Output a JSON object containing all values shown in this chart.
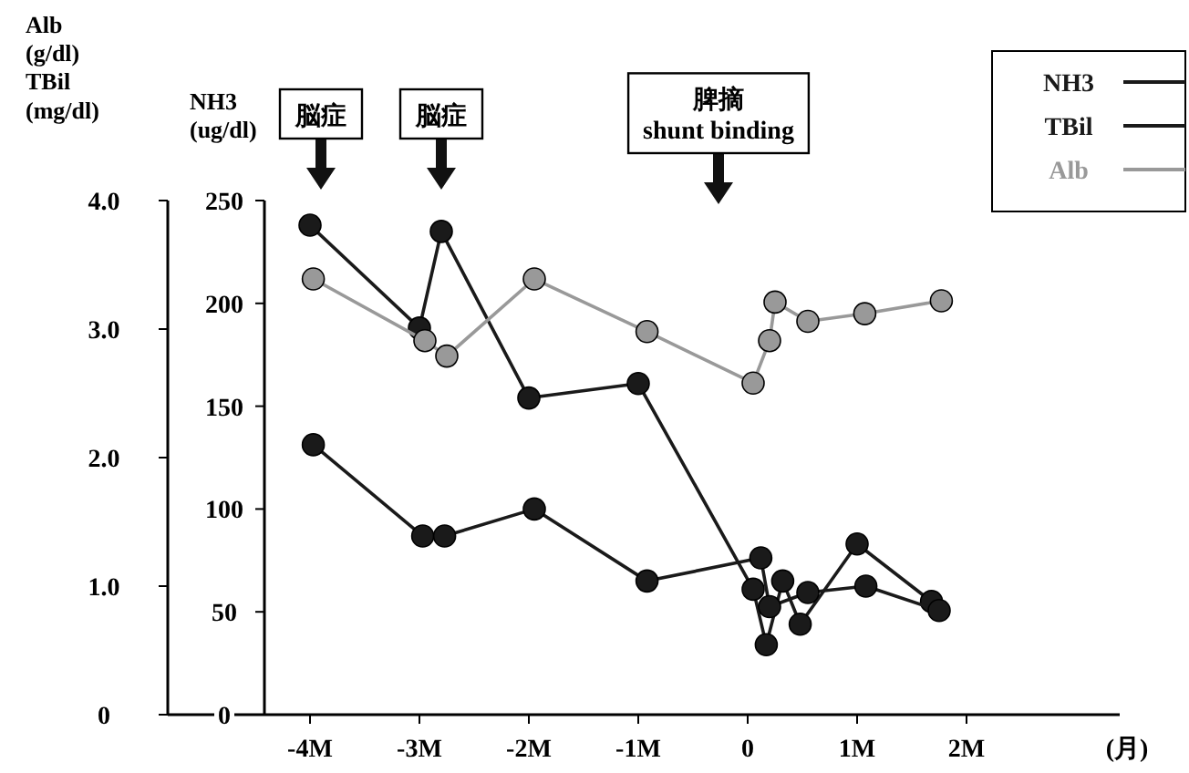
{
  "chart_data": {
    "type": "line",
    "xlabel": "(月)",
    "ylabel": "Alb\n(g/dl)\nTBil\n(mg/dl)",
    "y2label": "NH3\n(ug/dl)",
    "xlim": [
      -5.3,
      3.4
    ],
    "xticks": [
      {
        "value": -4,
        "label": "-4M"
      },
      {
        "value": -3,
        "label": "-3M"
      },
      {
        "value": -2,
        "label": "-2M"
      },
      {
        "value": -1,
        "label": "-1M"
      },
      0,
      {
        "value": 1,
        "label": "1M"
      },
      {
        "value": 2,
        "label": "2M"
      }
    ],
    "ylim": [
      0,
      4
    ],
    "yticks": [
      0,
      {
        "value": 1,
        "label": "1.0"
      },
      {
        "value": 2,
        "label": "2.0"
      },
      {
        "value": 3,
        "label": "3.0"
      },
      {
        "value": 4,
        "label": "4.0"
      }
    ],
    "y2lim": [
      0,
      250
    ],
    "y2ticks": [
      0,
      50,
      100,
      150,
      200,
      250
    ],
    "marker": "circle",
    "legend": "top right",
    "grid": false,
    "annotations": [
      "脳症",
      "脳症",
      "脾摘\nshunt binding"
    ],
    "series": [
      {
        "name": "NH3",
        "color": "#1a1a1a",
        "axis": "y2",
        "x": [
          -4.0,
          -3.0,
          -2.8,
          -2.0,
          -1.0,
          0.05,
          0.17,
          0.32,
          0.48,
          1.0,
          1.68
        ],
        "values": [
          238,
          188,
          235,
          154,
          161,
          61,
          34,
          65,
          44,
          83,
          55
        ]
      },
      {
        "name": "TBil",
        "color": "#1a1a1a",
        "x": [
          -3.97,
          -2.97,
          -2.77,
          -1.95,
          -0.92,
          0.12,
          0.2,
          0.55,
          1.08,
          1.75
        ],
        "values": [
          2.1,
          1.39,
          1.39,
          1.6,
          1.04,
          1.22,
          0.84,
          0.95,
          1.0,
          0.81
        ]
      },
      {
        "name": "Alb",
        "color": "#999999",
        "x": [
          -3.97,
          -2.95,
          -2.75,
          -1.95,
          -0.92,
          0.05,
          0.2,
          0.25,
          0.55,
          1.07,
          1.77
        ],
        "values": [
          3.39,
          2.91,
          2.79,
          3.39,
          2.98,
          2.58,
          2.91,
          3.21,
          3.06,
          3.12,
          3.22
        ]
      }
    ]
  }
}
